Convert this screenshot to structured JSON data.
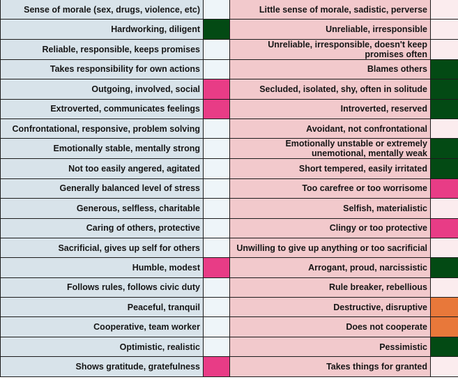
{
  "colors": {
    "positive_bg": "#d8e3ea",
    "negative_bg": "#f2c9cc",
    "green": "#034a14",
    "pink": "#e83c86",
    "orange": "#e8783a",
    "empty_positive": "#eef5f9",
    "empty_negative": "#fbecee"
  },
  "rows": [
    {
      "positive": "Sense of morale (sex, drugs, violence, etc)",
      "positive_mark": "none",
      "negative": "Little sense of morale, sadistic, perverse",
      "negative_mark": "none"
    },
    {
      "positive": "Hardworking, diligent",
      "positive_mark": "green",
      "negative": "Unreliable, irresponsible",
      "negative_mark": "none"
    },
    {
      "positive": "Reliable, responsible, keeps promises",
      "positive_mark": "none",
      "negative": "Unreliable, irresponsible, doesn't keep promises often",
      "negative_mark": "none"
    },
    {
      "positive": "Takes responsibility for own actions",
      "positive_mark": "none",
      "negative": "Blames others",
      "negative_mark": "green"
    },
    {
      "positive": "Outgoing, involved, social",
      "positive_mark": "pink",
      "negative": "Secluded, isolated, shy, often in solitude",
      "negative_mark": "green"
    },
    {
      "positive": "Extroverted, communicates feelings",
      "positive_mark": "pink",
      "negative": "Introverted, reserved",
      "negative_mark": "green"
    },
    {
      "positive": "Confrontational, responsive, problem solving",
      "positive_mark": "none",
      "negative": "Avoidant, not confrontational",
      "negative_mark": "none"
    },
    {
      "positive": "Emotionally stable, mentally strong",
      "positive_mark": "none",
      "negative": "Emotionally unstable or extremely unemotional, mentally weak",
      "negative_mark": "green"
    },
    {
      "positive": "Not too easily angered, agitated",
      "positive_mark": "none",
      "negative": "Short tempered, easily irritated",
      "negative_mark": "green"
    },
    {
      "positive": "Generally balanced level of stress",
      "positive_mark": "none",
      "negative": "Too carefree or too worrisome",
      "negative_mark": "pink"
    },
    {
      "positive": "Generous, selfless, charitable",
      "positive_mark": "none",
      "negative": "Selfish, materialistic",
      "negative_mark": "none"
    },
    {
      "positive": "Caring of others, protective",
      "positive_mark": "none",
      "negative": "Clingy or too protective",
      "negative_mark": "pink"
    },
    {
      "positive": "Sacrificial, gives up self for others",
      "positive_mark": "none",
      "negative": "Unwilling to give up anything or too sacrificial",
      "negative_mark": "none"
    },
    {
      "positive": "Humble, modest",
      "positive_mark": "pink",
      "negative": "Arrogant, proud, narcissistic",
      "negative_mark": "green"
    },
    {
      "positive": "Follows rules, follows civic duty",
      "positive_mark": "none",
      "negative": "Rule breaker, rebellious",
      "negative_mark": "none"
    },
    {
      "positive": "Peaceful, tranquil",
      "positive_mark": "none",
      "negative": "Destructive, disruptive",
      "negative_mark": "orange"
    },
    {
      "positive": "Cooperative, team worker",
      "positive_mark": "none",
      "negative": "Does not cooperate",
      "negative_mark": "orange"
    },
    {
      "positive": "Optimistic, realistic",
      "positive_mark": "none",
      "negative": "Pessimistic",
      "negative_mark": "green"
    },
    {
      "positive": "Shows gratitude, gratefulness",
      "positive_mark": "pink",
      "negative": "Takes things for granted",
      "negative_mark": "none"
    }
  ]
}
